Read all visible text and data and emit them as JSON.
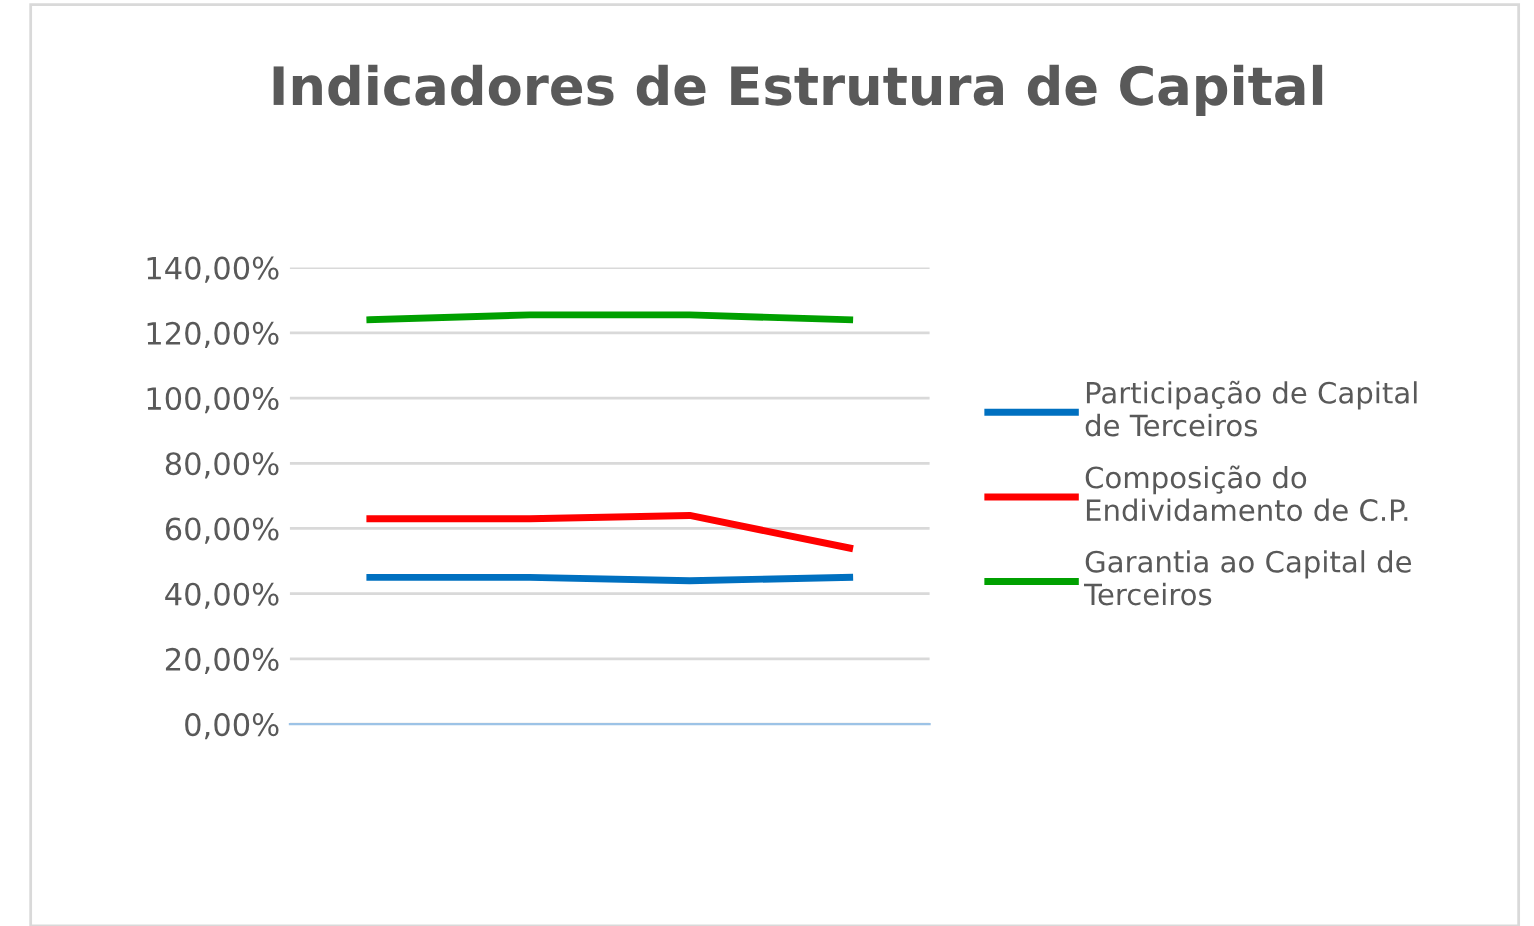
{
  "chart_data": {
    "type": "line",
    "title": "Indicadores de Estrutura de Capital",
    "categories": [
      null,
      null,
      null,
      null
    ],
    "series": [
      {
        "name": "Participação de Capital\nde Terceiros",
        "color": "#0070c0",
        "values": [
          45,
          45,
          44,
          45
        ]
      },
      {
        "name": "Composição do\nEndividamento de C.P.",
        "color": "#ff0000",
        "values": [
          63,
          63,
          64,
          54
        ]
      },
      {
        "name": "Garantia ao Capital de\nTerceiros",
        "color": "#00a000",
        "values": [
          124,
          125.5,
          125.5,
          124
        ]
      }
    ],
    "ylim": [
      0,
      140
    ],
    "yticks": [
      {
        "value": 0,
        "label": "0,00%"
      },
      {
        "value": 20,
        "label": "20,00%"
      },
      {
        "value": 40,
        "label": "40,00%"
      },
      {
        "value": 60,
        "label": "60,00%"
      },
      {
        "value": 80,
        "label": "80,00%"
      },
      {
        "value": 100,
        "label": "100,00%"
      },
      {
        "value": 120,
        "label": "120,00%"
      },
      {
        "value": 140,
        "label": "140,00%"
      }
    ],
    "grid": "y",
    "legend": "right",
    "marker": "none",
    "line_style": "solid"
  }
}
